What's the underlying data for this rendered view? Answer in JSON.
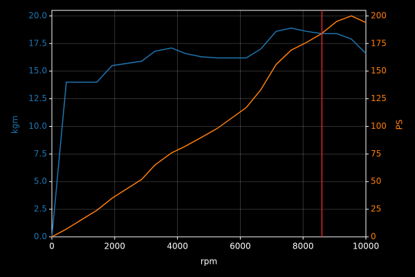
{
  "chart_data": {
    "type": "line",
    "x_label": "rpm",
    "y_label": "kgm",
    "y2_label": "PS",
    "x": [
      0,
      460,
      1430,
      1920,
      2860,
      3280,
      3810,
      4250,
      4760,
      5260,
      6190,
      6650,
      7140,
      7620,
      8110,
      8590,
      9070,
      9540,
      10000
    ],
    "series": [
      {
        "name": "kgm",
        "color": "#1f77b4",
        "axis": "y",
        "values": [
          0,
          14.0,
          14.0,
          15.5,
          15.9,
          16.8,
          17.1,
          16.6,
          16.3,
          16.2,
          16.2,
          17.0,
          18.6,
          18.9,
          18.6,
          18.4,
          18.4,
          17.9,
          16.6
        ]
      },
      {
        "name": "PS",
        "color": "#ff7f0e",
        "axis": "y2",
        "values": [
          0,
          7,
          24,
          35,
          52,
          65,
          76,
          82,
          90,
          98,
          117,
          133,
          156,
          169,
          176,
          184,
          195,
          200,
          194
        ]
      }
    ],
    "vline": {
      "x": 8600,
      "color": "#d62728"
    },
    "xlim": [
      0,
      10000
    ],
    "xticks": [
      0,
      2000,
      4000,
      6000,
      8000,
      10000
    ],
    "ylim": [
      0,
      20.5
    ],
    "yticks": [
      {
        "value": 0,
        "label": "0.0"
      },
      2.5,
      {
        "value": 5,
        "label": "5.0"
      },
      7.5,
      {
        "value": 10,
        "label": "10.0"
      },
      12.5,
      {
        "value": 15,
        "label": "15.0"
      },
      17.5,
      {
        "value": 20,
        "label": "20.0"
      }
    ],
    "y2lim": [
      0,
      205
    ],
    "y2ticks": [
      0,
      25,
      50,
      75,
      100,
      125,
      150,
      175,
      200
    ],
    "grid": true
  }
}
